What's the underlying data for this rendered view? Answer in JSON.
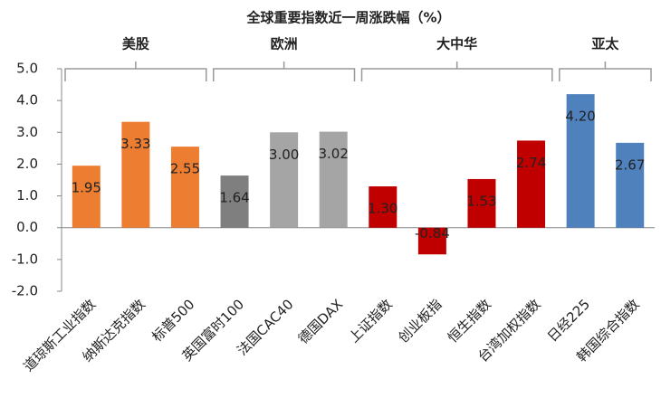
{
  "chart_data": {
    "type": "bar",
    "title": "全球重要指数近一周涨跌幅（%）",
    "categories": [
      "道琼斯工业指数",
      "纳斯达克指数",
      "标普500",
      "英国富时100",
      "法国CAC40",
      "德国DAX",
      "上证指数",
      "创业板指",
      "恒生指数",
      "台湾加权指数",
      "日经225",
      "韩国综合指数"
    ],
    "values": [
      1.95,
      3.33,
      2.55,
      1.64,
      3.0,
      3.02,
      1.3,
      -0.84,
      1.53,
      2.74,
      4.2,
      2.67
    ],
    "value_labels": [
      "1.95",
      "3.33",
      "2.55",
      "1.64",
      "3.00",
      "3.02",
      "1.30",
      "-0.84",
      "1.53",
      "2.74",
      "4.20",
      "2.67"
    ],
    "colors": [
      "#ed7d31",
      "#ed7d31",
      "#ed7d31",
      "#7f7f7f",
      "#a5a5a5",
      "#a5a5a5",
      "#c00000",
      "#c00000",
      "#c00000",
      "#c00000",
      "#4f81bd",
      "#4f81bd"
    ],
    "groups": [
      {
        "label": "美股",
        "size": 3
      },
      {
        "label": "欧洲",
        "size": 3
      },
      {
        "label": "大中华",
        "size": 4
      },
      {
        "label": "亚太",
        "size": 2
      }
    ],
    "ylim": [
      -2,
      5
    ],
    "yticks": [
      {
        "value": -2,
        "label": "-2.0"
      },
      {
        "value": -1,
        "label": "-1.0"
      },
      {
        "value": 0,
        "label": "0.0"
      },
      {
        "value": 1,
        "label": "1.0"
      },
      {
        "value": 2,
        "label": "2.0"
      },
      {
        "value": 3,
        "label": "3.0"
      },
      {
        "value": 4,
        "label": "4.0"
      },
      {
        "value": 5,
        "label": "5.0"
      }
    ],
    "grid": false
  }
}
